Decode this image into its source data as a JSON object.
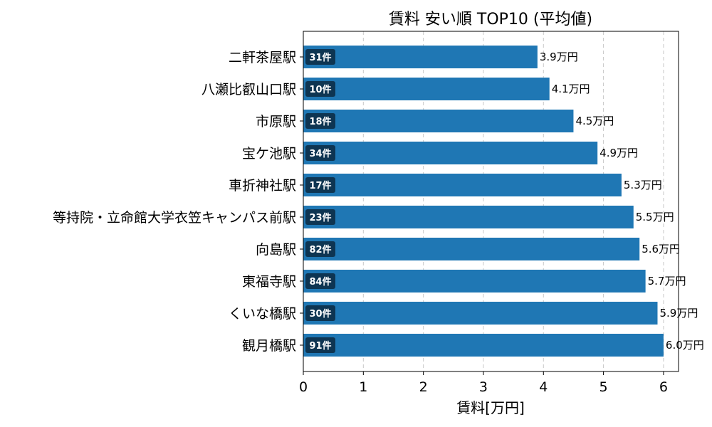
{
  "chart_data": {
    "type": "bar",
    "orientation": "horizontal",
    "title": "賃料 安い順 TOP10 (平均値)",
    "xlabel": "賃料[万円]",
    "ylabel": "",
    "xlim": [
      0,
      6.25
    ],
    "xticks": [
      0,
      1,
      2,
      3,
      4,
      5,
      6
    ],
    "grid": "x-dashed",
    "bar_color": "#1f77b4",
    "badge_color": "#0e3552",
    "value_suffix": "万円",
    "categories": [
      "二軒茶屋駅",
      "八瀬比叡山口駅",
      "市原駅",
      "宝ケ池駅",
      "車折神社駅",
      "等持院・立命館大学衣笠キャンパス前駅",
      "向島駅",
      "東福寺駅",
      "くいな橋駅",
      "観月橋駅"
    ],
    "values": [
      3.9,
      4.1,
      4.5,
      4.9,
      5.3,
      5.5,
      5.6,
      5.7,
      5.9,
      6.0
    ],
    "value_labels": [
      "3.9万円",
      "4.1万円",
      "4.5万円",
      "4.9万円",
      "5.3万円",
      "5.5万円",
      "5.6万円",
      "5.7万円",
      "5.9万円",
      "6.0万円"
    ],
    "counts": [
      "31件",
      "10件",
      "18件",
      "34件",
      "17件",
      "23件",
      "82件",
      "84件",
      "30件",
      "91件"
    ]
  }
}
